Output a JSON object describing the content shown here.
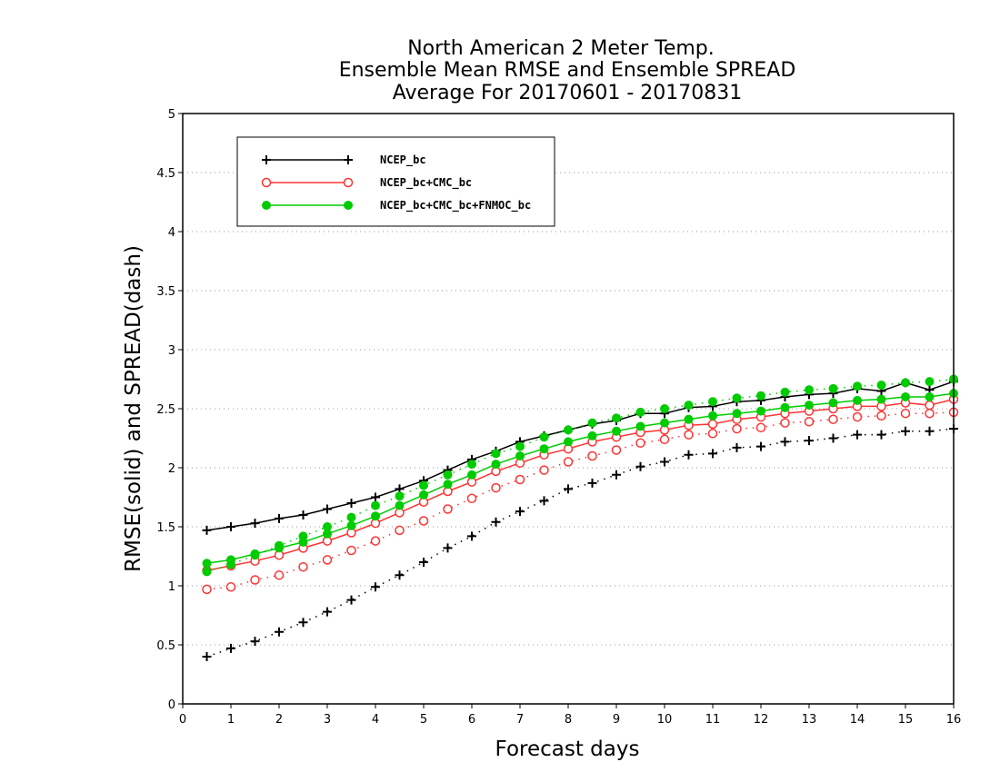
{
  "chart_data": {
    "type": "line",
    "title_lines": [
      "North American 2 Meter Temp.",
      "Ensemble Mean RMSE and Ensemble SPREAD",
      "Average For 20170601 - 20170831"
    ],
    "xlabel": "Forecast days",
    "ylabel": "RMSE(solid) and SPREAD(dash)",
    "xlim": [
      0,
      16
    ],
    "ylim": [
      0,
      5
    ],
    "xticks": [
      "0",
      "1",
      "2",
      "3",
      "4",
      "5",
      "6",
      "7",
      "8",
      "9",
      "10",
      "11",
      "12",
      "13",
      "14",
      "15",
      "16"
    ],
    "yticks": [
      "0",
      "0.5",
      "1",
      "1.5",
      "2",
      "2.5",
      "3",
      "3.5",
      "4",
      "4.5",
      "5"
    ],
    "grid": "horizontal dotted",
    "legend_position": "top-left",
    "x": [
      0.5,
      1,
      1.5,
      2,
      2.5,
      3,
      3.5,
      4,
      4.5,
      5,
      5.5,
      6,
      6.5,
      7,
      7.5,
      8,
      8.5,
      9,
      9.5,
      10,
      10.5,
      11,
      11.5,
      12,
      12.5,
      13,
      13.5,
      14,
      14.5,
      15,
      15.5,
      16
    ],
    "series": [
      {
        "name": "NCEP_bc",
        "color": "#000000",
        "marker": "plus",
        "rmse": [
          1.47,
          1.5,
          1.53,
          1.57,
          1.6,
          1.65,
          1.7,
          1.75,
          1.82,
          1.89,
          1.98,
          2.07,
          2.14,
          2.22,
          2.27,
          2.32,
          2.37,
          2.4,
          2.46,
          2.46,
          2.51,
          2.52,
          2.56,
          2.57,
          2.6,
          2.62,
          2.63,
          2.67,
          2.65,
          2.72,
          2.66,
          2.73
        ],
        "spread": [
          0.4,
          0.47,
          0.53,
          0.61,
          0.69,
          0.78,
          0.88,
          0.99,
          1.09,
          1.2,
          1.32,
          1.42,
          1.54,
          1.63,
          1.72,
          1.82,
          1.87,
          1.94,
          2.01,
          2.05,
          2.11,
          2.12,
          2.17,
          2.18,
          2.22,
          2.23,
          2.25,
          2.28,
          2.28,
          2.31,
          2.31,
          2.33
        ]
      },
      {
        "name": "NCEP_bc+CMC_bc",
        "color": "#ff3333",
        "marker": "open-circle",
        "rmse": [
          1.13,
          1.17,
          1.21,
          1.26,
          1.32,
          1.38,
          1.45,
          1.53,
          1.62,
          1.71,
          1.8,
          1.88,
          1.97,
          2.04,
          2.11,
          2.16,
          2.22,
          2.26,
          2.3,
          2.32,
          2.36,
          2.37,
          2.41,
          2.43,
          2.46,
          2.48,
          2.5,
          2.52,
          2.52,
          2.55,
          2.53,
          2.58
        ],
        "spread": [
          0.97,
          0.99,
          1.05,
          1.09,
          1.16,
          1.22,
          1.3,
          1.38,
          1.47,
          1.55,
          1.65,
          1.74,
          1.83,
          1.9,
          1.98,
          2.05,
          2.1,
          2.15,
          2.21,
          2.24,
          2.28,
          2.29,
          2.33,
          2.34,
          2.38,
          2.39,
          2.41,
          2.43,
          2.44,
          2.46,
          2.46,
          2.47
        ]
      },
      {
        "name": "NCEP_bc+CMC_bc+FNMOC_bc",
        "color": "#00cc00",
        "marker": "filled-circle",
        "rmse": [
          1.19,
          1.22,
          1.27,
          1.32,
          1.37,
          1.44,
          1.51,
          1.59,
          1.68,
          1.77,
          1.86,
          1.94,
          2.03,
          2.1,
          2.16,
          2.22,
          2.27,
          2.31,
          2.35,
          2.38,
          2.41,
          2.44,
          2.46,
          2.48,
          2.51,
          2.53,
          2.55,
          2.57,
          2.58,
          2.6,
          2.6,
          2.63
        ],
        "spread": [
          1.12,
          1.18,
          1.26,
          1.34,
          1.42,
          1.5,
          1.58,
          1.68,
          1.76,
          1.85,
          1.94,
          2.03,
          2.12,
          2.18,
          2.26,
          2.32,
          2.38,
          2.42,
          2.47,
          2.5,
          2.53,
          2.56,
          2.59,
          2.61,
          2.64,
          2.66,
          2.67,
          2.69,
          2.7,
          2.72,
          2.73,
          2.75
        ]
      }
    ]
  }
}
